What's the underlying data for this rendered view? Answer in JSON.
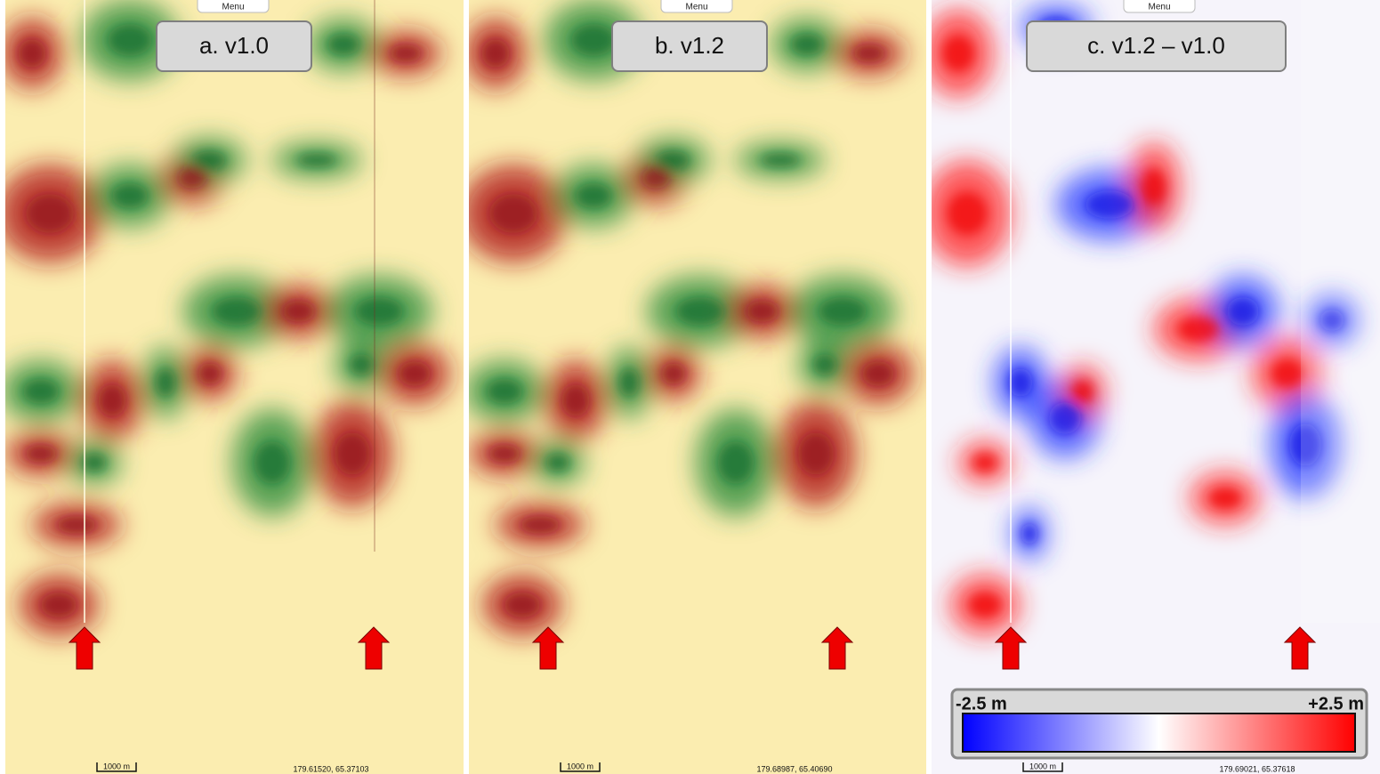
{
  "panels": [
    {
      "menu": "Menu",
      "label": "a.  v1.0",
      "scale": "1000 m",
      "coords": "179.61520, 65.37103"
    },
    {
      "menu": "Menu",
      "label": "b.  v1.2",
      "scale": "1000 m",
      "coords": "179.68987, 65.40690"
    },
    {
      "menu": "Menu",
      "label": "c.  v1.2 – v1.0",
      "scale": "1000 m",
      "coords": "179.69021, 65.37618"
    }
  ],
  "legend": {
    "min_label": "-2.5 m",
    "max_label": "+2.5 m"
  }
}
